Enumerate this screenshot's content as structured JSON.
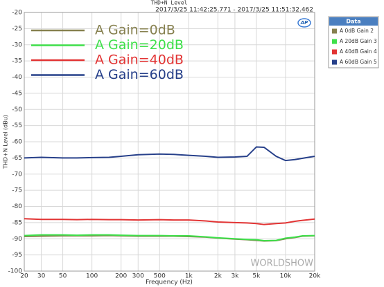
{
  "chart_data": {
    "type": "line",
    "title": "THD+N Level",
    "subtitle": "2017/3/25 11:42:25.771 - 2017/3/25 11:51:32.462",
    "x_label": "Frequency (Hz)",
    "y_label": "THD+N Level (dBu)",
    "legend_title": "Data",
    "logo": "AP",
    "watermark": "WORLDSHOW",
    "xscale": "log",
    "grid": true,
    "xlim": [
      20,
      20000
    ],
    "ylim": [
      -100,
      -20
    ],
    "xticks": [
      20,
      30,
      50,
      100,
      200,
      300,
      500,
      {
        "value": 1000,
        "label": "1k"
      },
      {
        "value": 2000,
        "label": "2k"
      },
      {
        "value": 3000,
        "label": "3k"
      },
      {
        "value": 5000,
        "label": "5k"
      },
      {
        "value": 10000,
        "label": "10k"
      },
      {
        "value": 20000,
        "label": "20k"
      }
    ],
    "yticks": [
      -20,
      -25,
      -30,
      -35,
      -40,
      -45,
      -50,
      -55,
      -60,
      -65,
      -70,
      -75,
      -80,
      -85,
      -90,
      -95,
      -100
    ],
    "x": [
      20,
      30,
      50,
      70,
      100,
      150,
      200,
      300,
      500,
      700,
      1000,
      1500,
      2000,
      3000,
      4000,
      5000,
      6000,
      8000,
      10000,
      12500,
      15000,
      20000
    ],
    "series": [
      {
        "name": "A 0dB Gain 2",
        "color": "#86804f",
        "values": [
          -89.3,
          -89.2,
          -89.1,
          -89.1,
          -89.1,
          -89,
          -89.1,
          -89.2,
          -89.2,
          -89.2,
          -89.3,
          -89.5,
          -89.8,
          -90.1,
          -90.3,
          -90.5,
          -90.7,
          -90.6,
          -90,
          -89.6,
          -89.2,
          -89.1
        ]
      },
      {
        "name": "A 20dB Gain 3",
        "color": "#3ee04a",
        "values": [
          -89,
          -88.8,
          -88.8,
          -88.9,
          -88.8,
          -88.8,
          -88.9,
          -89,
          -89,
          -89.1,
          -89.1,
          -89.4,
          -89.7,
          -90,
          -90.2,
          -90.3,
          -90.6,
          -90.5,
          -89.8,
          -89.5,
          -89.1,
          -89
        ]
      },
      {
        "name": "A 40dB Gain 4",
        "color": "#e23434",
        "values": [
          -83.8,
          -84,
          -84,
          -84.1,
          -84,
          -84.1,
          -84.1,
          -84.2,
          -84.1,
          -84.2,
          -84.2,
          -84.5,
          -84.8,
          -85,
          -85.1,
          -85.3,
          -85.6,
          -85.3,
          -85.1,
          -84.6,
          -84.3,
          -83.9
        ]
      },
      {
        "name": "A 60dB Gain 5",
        "color": "#27408a",
        "values": [
          -65,
          -64.8,
          -65,
          -65,
          -64.9,
          -64.8,
          -64.5,
          -64,
          -63.8,
          -63.9,
          -64.2,
          -64.5,
          -64.8,
          -64.7,
          -64.5,
          -61.6,
          -61.7,
          -64.5,
          -65.8,
          -65.5,
          -65.1,
          -64.5
        ]
      }
    ],
    "annotations": [
      "A Gain=0dB",
      "A Gain=20dB",
      "A Gain=40dB",
      "A Gain=60dB"
    ]
  }
}
